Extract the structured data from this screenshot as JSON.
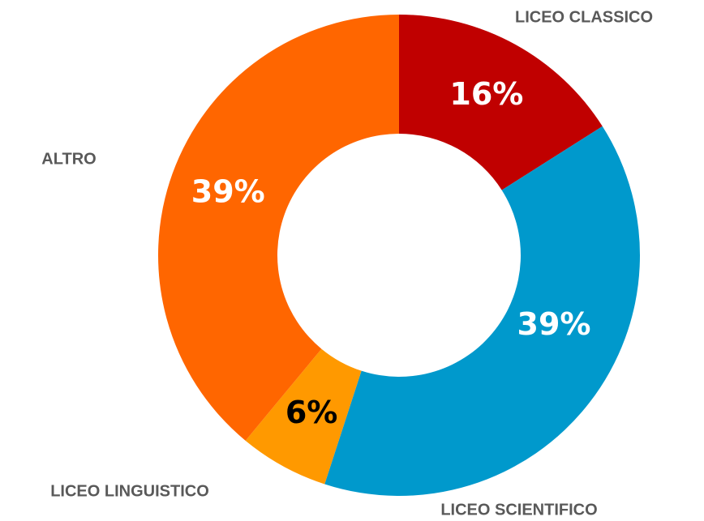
{
  "chart_data": {
    "type": "donut",
    "categories": [
      "LICEO CLASSICO",
      "LICEO SCIENTIFICO",
      "LICEO LINGUISTICO",
      "ALTRO"
    ],
    "values": [
      16,
      39,
      6,
      39
    ],
    "value_labels": [
      "16%",
      "39%",
      "6%",
      "39%"
    ],
    "colors": [
      "#c00000",
      "#0099cc",
      "#ff9900",
      "#ff6600"
    ],
    "label_colors": [
      "#ffffff",
      "#ffffff",
      "#000000",
      "#ffffff"
    ]
  }
}
